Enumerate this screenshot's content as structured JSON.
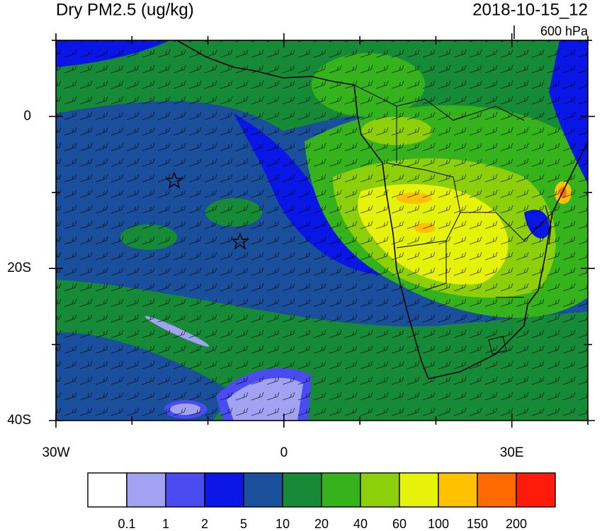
{
  "title": "Dry PM2.5 (ug/kg)",
  "time": "2018-10-15_12",
  "level": "600 hPa",
  "map": {
    "xlim": [
      -30,
      40
    ],
    "ylim": [
      -40,
      10
    ],
    "xticks": [
      {
        "value": -30,
        "label": "30W"
      },
      {
        "value": 0,
        "label": "0"
      },
      {
        "value": 30,
        "label": "30E"
      }
    ],
    "xminor": [
      -20,
      -10,
      10,
      20,
      40
    ],
    "yticks": [
      {
        "value": 0,
        "label": "0"
      },
      {
        "value": -20,
        "label": "20S"
      },
      {
        "value": -40,
        "label": "40S"
      }
    ],
    "yminor": [
      10,
      -10,
      -30
    ]
  },
  "colorbar": {
    "levels": [
      0.1,
      1,
      2,
      5,
      10,
      20,
      40,
      60,
      100,
      150,
      200
    ],
    "colors": [
      "#ffffff",
      "#a2a2f2",
      "#4a4cf2",
      "#0a16e6",
      "#1a4f9c",
      "#178a37",
      "#36b31c",
      "#8ccf0a",
      "#e6f20a",
      "#ffc100",
      "#ff6a00",
      "#ff1a0a"
    ]
  }
}
